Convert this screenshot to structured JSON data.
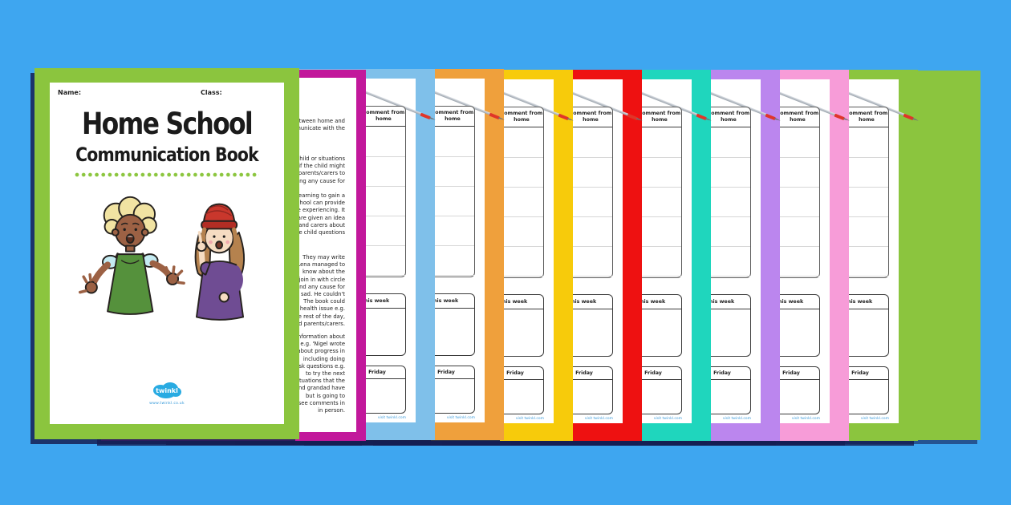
{
  "background_color": "#3EA6F0",
  "cover": {
    "border_color": "#8BC53E",
    "name_label": "Name:",
    "class_label": "Class:",
    "title_line1": "Home School",
    "title_line2": "Communication Book",
    "dot_color": "#8CC63F",
    "logo_text": "twinkl",
    "logo_subtext": "www.twinkl.co.uk"
  },
  "info_page": {
    "border_color": "#C2189B",
    "text_blocks": [
      [
        "between home and",
        "municate with the"
      ],
      [
        "child or situations",
        "if the child might",
        "parents/carers to",
        "ding any cause for"
      ],
      [
        "learning to gain a",
        "school can provide",
        "be experiencing. It",
        "are given an idea",
        "and carers about",
        "the child questions"
      ],
      [
        "They may write",
        "'Lena managed to",
        "know about the",
        "join in with circle",
        "and any cause for",
        "sad. He couldn't",
        "The book could",
        "health issue e.g.",
        "the rest of the day,",
        "and parents/carers."
      ],
      [
        "information about",
        "e.g. 'Nigel wrote",
        "about progress in",
        "including doing",
        "ask questions e.g.",
        "to try the next",
        "situations that the",
        "and grandad have",
        "but is going to",
        "see comments in",
        "in person."
      ]
    ]
  },
  "form_page": {
    "comment_header_line1": "Comment from",
    "comment_header_line2": "home",
    "work_header": "My work this week",
    "friday_header": "Friday",
    "watermark": "visit twinkl.com",
    "border_colors": [
      "#7FC0EA",
      "#EFA03C",
      "#F7CB0B",
      "#EE1111",
      "#1FD6BD",
      "#BB86EE",
      "#F79CD8",
      "#8BC53E"
    ]
  },
  "back_sheet": {
    "color": "#8BC53E"
  }
}
